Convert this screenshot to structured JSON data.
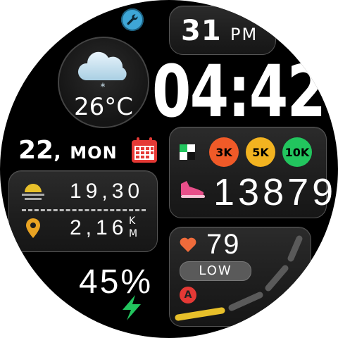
{
  "watch": {
    "date": {
      "day_number": "31",
      "ampm": "PM"
    },
    "time": "04:42",
    "weather": {
      "icon": "snow-cloud-icon",
      "temperature": "26°C"
    },
    "day": {
      "number": "22",
      "comma": ",",
      "weekday": "MON",
      "calendar_icon": "calendar-icon"
    },
    "sun": {
      "icon": "sunrise-icon",
      "value": "19,30"
    },
    "distance": {
      "icon": "location-pin-icon",
      "value": "2,16",
      "unit": "KM"
    },
    "steps": {
      "goals": [
        {
          "label": "3K",
          "color": "#f05a28"
        },
        {
          "label": "5K",
          "color": "#f2b320"
        },
        {
          "label": "10K",
          "color": "#22c55e"
        }
      ],
      "count": "13879",
      "icon": "shoe-icon"
    },
    "heart": {
      "icon": "heart-icon",
      "value": "79",
      "zone": "LOW",
      "badge": "A",
      "gauge_level": 0.25
    },
    "battery": {
      "value": "45%",
      "icon": "charging-bolt-icon"
    },
    "settings_icon": "wrench-icon",
    "colors": {
      "accent_blue": "#3ea6d6",
      "calendar_red": "#e53935",
      "heart_orange": "#ef6b3b",
      "shoe_pink": "#e84f8a",
      "bolt_green": "#22c55e",
      "gauge_yellow": "#e8c02a",
      "gauge_gray": "#5a5a5a"
    }
  }
}
